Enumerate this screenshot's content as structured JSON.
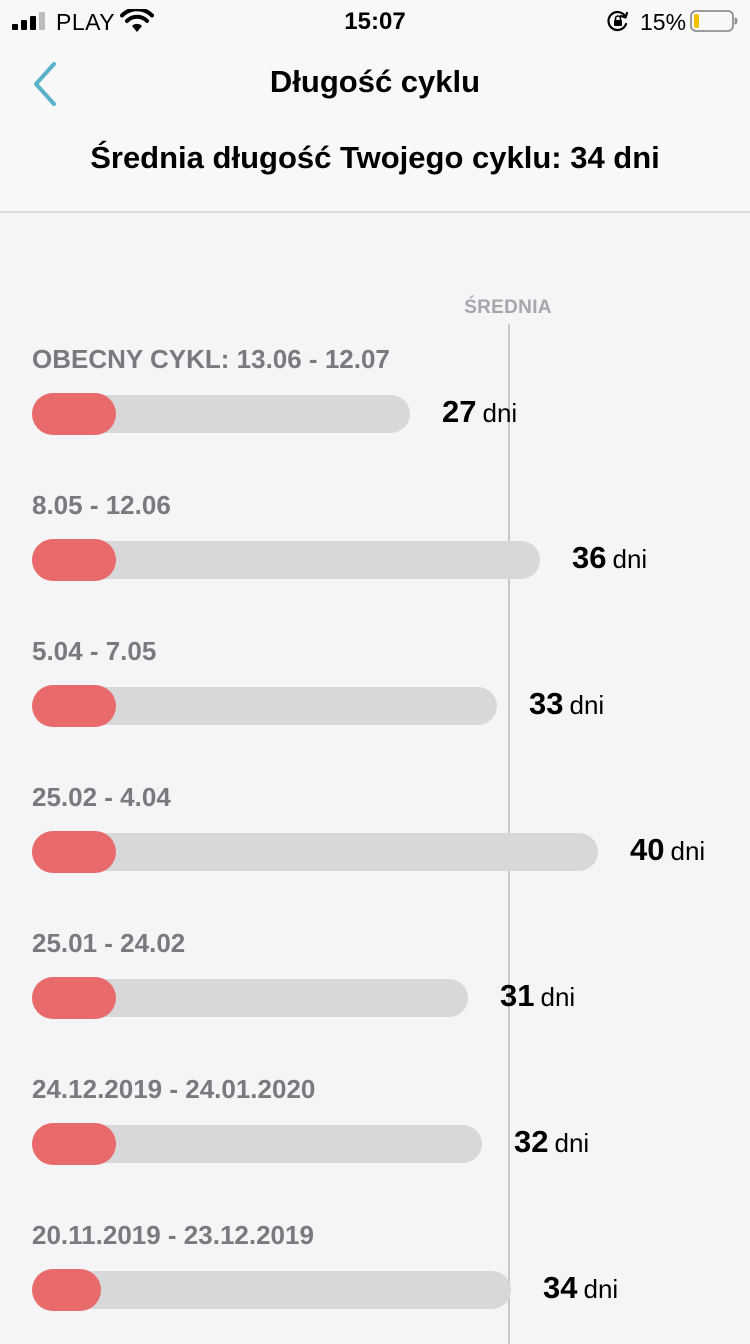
{
  "status_bar": {
    "carrier": "PLAY",
    "time": "15:07",
    "battery_percent": "15%",
    "battery_level": 0.15,
    "battery_color": "#f2c200",
    "icons": [
      "signal-icon",
      "wifi-icon",
      "orientation-lock-icon",
      "battery-icon"
    ]
  },
  "nav": {
    "back_icon": "chevron-left-icon",
    "back_color": "#5ab1c8",
    "title": "Długość cyklu"
  },
  "summary": {
    "text": "Średnia długość Twojego cyklu: 34 dni"
  },
  "chart": {
    "average_label": "ŚREDNIA",
    "average_days": 34,
    "period_color": "#e86a6a",
    "track_color": "#d8d8da",
    "unit": "dni"
  },
  "cycles": [
    {
      "range": "OBECNY CYKL: 13.06 - 12.07",
      "days": "27",
      "period_days": 6
    },
    {
      "range": "8.05 - 12.06",
      "days": "36",
      "period_days": 6
    },
    {
      "range": "5.04 - 7.05",
      "days": "33",
      "period_days": 6
    },
    {
      "range": "25.02 - 4.04",
      "days": "40",
      "period_days": 6
    },
    {
      "range": "25.01 - 24.02",
      "days": "31",
      "period_days": 6
    },
    {
      "range": "24.12.2019 - 24.01.2020",
      "days": "32",
      "period_days": 6
    },
    {
      "range": "20.11.2019 - 23.12.2019",
      "days": "34",
      "period_days": 5
    }
  ]
}
